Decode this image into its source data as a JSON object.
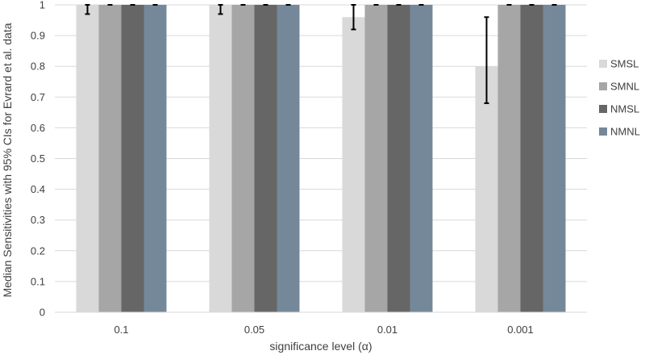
{
  "chart_data": {
    "type": "bar",
    "categories": [
      "0.1",
      "0.05",
      "0.01",
      "0.001"
    ],
    "series": [
      {
        "name": "SMSL",
        "color": "#d9d9d9",
        "values": [
          1,
          1,
          0.96,
          0.8
        ],
        "ci_low": [
          0.97,
          0.97,
          0.92,
          0.68
        ],
        "ci_high": [
          1,
          1,
          1,
          0.96
        ]
      },
      {
        "name": "SMNL",
        "color": "#a6a6a6",
        "values": [
          1,
          1,
          1,
          1
        ],
        "ci_low": [
          1,
          1,
          1,
          1
        ],
        "ci_high": [
          1,
          1,
          1,
          1
        ]
      },
      {
        "name": "NMSL",
        "color": "#666666",
        "values": [
          1,
          1,
          1,
          1
        ],
        "ci_low": [
          1,
          1,
          1,
          1
        ],
        "ci_high": [
          1,
          1,
          1,
          1
        ]
      },
      {
        "name": "NMNL",
        "color": "#748899",
        "values": [
          1,
          1,
          1,
          1
        ],
        "ci_low": [
          1,
          1,
          1,
          1
        ],
        "ci_high": [
          1,
          1,
          1,
          1
        ]
      }
    ],
    "xlabel": "significance level (α)",
    "ylabel": "Median Sensitivities with 95% CIs for Evrard et al. data",
    "ylim": [
      0,
      1
    ],
    "yticks": [
      "0",
      "0.1",
      "0.2",
      "0.3",
      "0.4",
      "0.5",
      "0.6",
      "0.7",
      "0.8",
      "0.9",
      "1"
    ],
    "grid": true,
    "legend_position": "right"
  }
}
